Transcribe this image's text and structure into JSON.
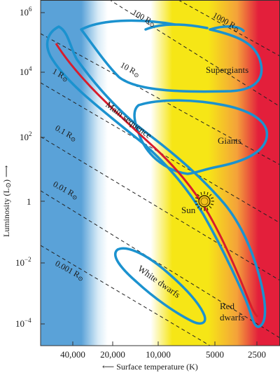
{
  "axes": {
    "y_title": "Luminosity (L",
    "y_title_sun": "⊙",
    "y_title_close": ")",
    "y_ticks": [
      {
        "base": "10",
        "exp": "6"
      },
      {
        "base": "10",
        "exp": "4"
      },
      {
        "base": "10",
        "exp": "2"
      },
      {
        "base": "1",
        "exp": ""
      },
      {
        "base": "10",
        "exp": "−2"
      },
      {
        "base": "10",
        "exp": "−4"
      }
    ],
    "x_title": "Surface temperature (K)",
    "x_ticks": [
      "40,000",
      "20,000",
      "10,000",
      "5000",
      "2500"
    ]
  },
  "radius_lines": [
    {
      "value": "1000 R",
      "sun": "⊙"
    },
    {
      "value": "100 R",
      "sun": "⊙"
    },
    {
      "value": "10 R",
      "sun": "⊙"
    },
    {
      "value": "1 R",
      "sun": "⊙"
    },
    {
      "value": "0.1 R",
      "sun": "⊙"
    },
    {
      "value": "0.01 R",
      "sun": "⊙"
    },
    {
      "value": "0.001 R",
      "sun": "⊙"
    }
  ],
  "regions": {
    "supergiants": "Supergiants",
    "giants": "Giants",
    "main_sequence": "Main sequence",
    "sun": "Sun",
    "white_dwarfs": "White dwarfs",
    "red_dwarfs_1": "Red",
    "red_dwarfs_2": "dwarfs"
  },
  "colors": {
    "blue": "#5aa2d8",
    "white": "#ffffff",
    "yellow": "#f6e616",
    "orange": "#f4a23a",
    "red": "#e31f3b",
    "outline": "#1b92cf",
    "main_sequence_line": "#d71d2d",
    "sun": "#f2c21c"
  }
}
